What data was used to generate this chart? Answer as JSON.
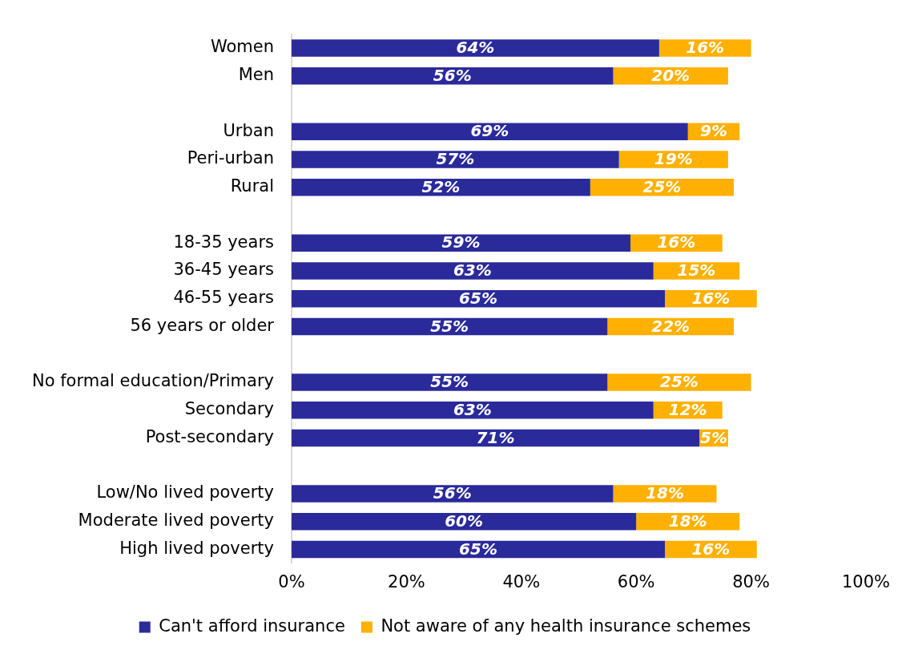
{
  "chart_data": {
    "type": "bar",
    "orientation": "horizontal",
    "stacked": true,
    "categories": [
      "Women",
      "Men",
      null,
      "Urban",
      "Peri-urban",
      "Rural",
      null,
      "18-35 years",
      "36-45 years",
      "46-55 years",
      "56 years or older",
      null,
      "No formal education/Primary",
      "Secondary",
      "Post-secondary",
      null,
      "Low/No lived poverty",
      "Moderate lived poverty",
      "High lived poverty"
    ],
    "series": [
      {
        "name": "Can't afford insurance",
        "color": "#2b2a9b",
        "values": [
          64,
          56,
          null,
          69,
          57,
          52,
          null,
          59,
          63,
          65,
          55,
          null,
          55,
          63,
          71,
          null,
          56,
          60,
          65
        ],
        "value_labels": [
          "64%",
          "56%",
          null,
          "69%",
          "57%",
          "52%",
          null,
          "59%",
          "63%",
          "65%",
          "55%",
          null,
          "55%",
          "63%",
          "71%",
          null,
          "56%",
          "60%",
          "65%"
        ]
      },
      {
        "name": "Not aware of any health insurance schemes",
        "color": "#ffb000",
        "values": [
          16,
          20,
          null,
          9,
          19,
          25,
          null,
          16,
          15,
          16,
          22,
          null,
          25,
          12,
          5,
          null,
          18,
          18,
          16
        ],
        "value_labels": [
          "16%",
          "20%",
          null,
          "9%",
          "19%",
          "25%",
          null,
          "16%",
          "15%",
          "16%",
          "22%",
          null,
          "25%",
          "12%",
          "5%",
          null,
          "18%",
          "18%",
          "16%"
        ]
      }
    ],
    "xlim": [
      0,
      100
    ],
    "xticks": [
      {
        "value": 0,
        "label": "0%"
      },
      {
        "value": 20,
        "label": "20%"
      },
      {
        "value": 40,
        "label": "40%"
      },
      {
        "value": 60,
        "label": "60%"
      },
      {
        "value": 80,
        "label": "80%"
      },
      {
        "value": 100,
        "label": "100%"
      }
    ],
    "legend": "bottom"
  }
}
